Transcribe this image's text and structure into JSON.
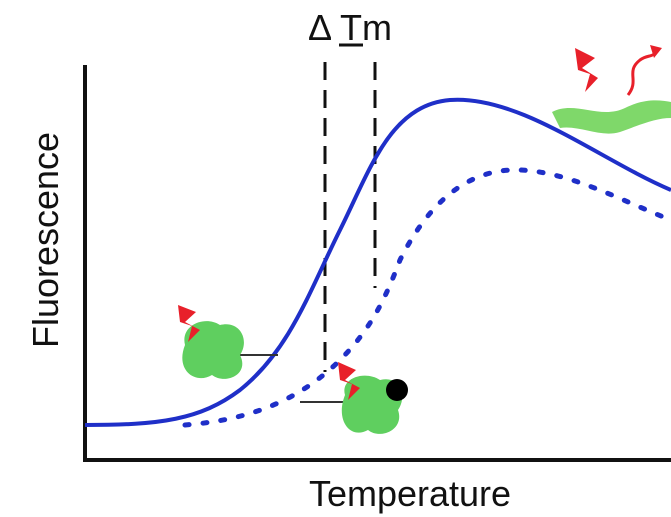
{
  "labels": {
    "delta_tm": "Δ Tm",
    "y_axis": "Fluorescence",
    "x_axis": "Temperature"
  }
}
